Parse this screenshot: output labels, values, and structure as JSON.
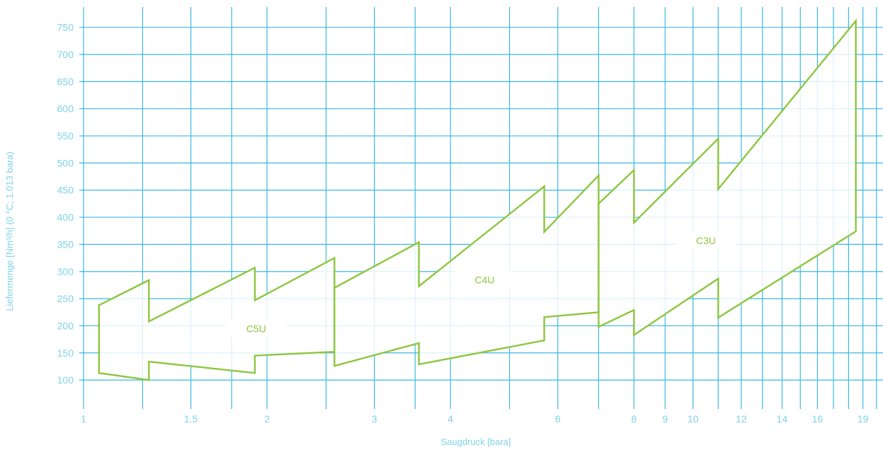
{
  "chart_data": {
    "type": "area",
    "title": "",
    "xlabel": "Saugdruck [bara]",
    "ylabel": "Liefermenge [Nm³/h] (0 °C; 1.013 bara)",
    "x_scale": "log",
    "xlim": [
      1,
      20.5
    ],
    "ylim": [
      48,
      790
    ],
    "x_ticks": [
      1,
      1.5,
      2,
      3,
      4,
      6,
      8,
      9,
      10,
      12,
      14,
      16,
      19
    ],
    "x_tick_labels": [
      "1",
      "1.5",
      "2",
      "3",
      "4",
      "6",
      "8",
      "9",
      "10",
      "12",
      "14",
      "16",
      "19"
    ],
    "x_gridlines": [
      1,
      1.25,
      1.5,
      1.75,
      2,
      2.5,
      3,
      3.5,
      4,
      5,
      6,
      7,
      8,
      9,
      10,
      11,
      12,
      13,
      14,
      15,
      16,
      17,
      18,
      19,
      20
    ],
    "y_ticks": [
      100,
      150,
      200,
      250,
      300,
      350,
      400,
      450,
      500,
      550,
      600,
      650,
      700,
      750
    ],
    "grid": true,
    "colors": {
      "grid": "#3cb8e0",
      "text": "#7fd3ea",
      "outline": "#8cc63f",
      "fill": "#ffffff"
    },
    "series": [
      {
        "name": "C5U",
        "label_at": [
          1.92,
          195
        ],
        "outline": [
          [
            1.06,
            238
          ],
          [
            1.28,
            284
          ],
          [
            1.28,
            208
          ],
          [
            1.91,
            307
          ],
          [
            1.91,
            247
          ],
          [
            2.58,
            325
          ],
          [
            2.58,
            152
          ],
          [
            1.91,
            145
          ],
          [
            1.91,
            113
          ],
          [
            1.28,
            134
          ],
          [
            1.28,
            100
          ],
          [
            1.06,
            113
          ]
        ]
      },
      {
        "name": "C4U",
        "label_at": [
          4.55,
          285
        ],
        "outline": [
          [
            2.58,
            270
          ],
          [
            3.55,
            354
          ],
          [
            3.55,
            273
          ],
          [
            5.7,
            457
          ],
          [
            5.7,
            373
          ],
          [
            7.0,
            477
          ],
          [
            7.0,
            225
          ],
          [
            5.7,
            216
          ],
          [
            5.7,
            173
          ],
          [
            3.55,
            129
          ],
          [
            3.55,
            168
          ],
          [
            2.58,
            126
          ]
        ]
      },
      {
        "name": "C3U",
        "label_at": [
          10.5,
          357
        ],
        "outline": [
          [
            7.0,
            425
          ],
          [
            8.0,
            487
          ],
          [
            8.0,
            390
          ],
          [
            11.0,
            545
          ],
          [
            11.0,
            452
          ],
          [
            18.5,
            762
          ],
          [
            18.5,
            374
          ],
          [
            11.0,
            215
          ],
          [
            11.0,
            287
          ],
          [
            8.0,
            183
          ],
          [
            8.0,
            229
          ],
          [
            7.0,
            198
          ]
        ]
      }
    ]
  }
}
